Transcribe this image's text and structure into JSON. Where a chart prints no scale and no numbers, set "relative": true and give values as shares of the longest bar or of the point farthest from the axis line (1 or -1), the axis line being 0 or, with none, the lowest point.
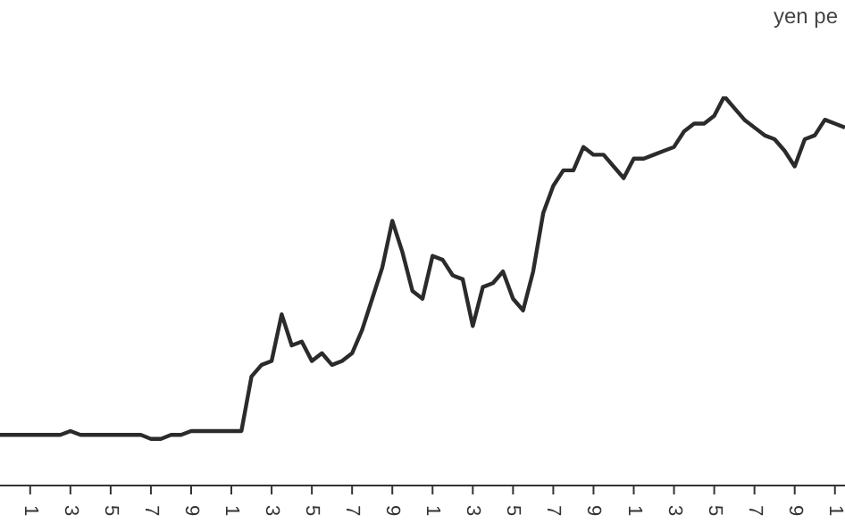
{
  "chart_data": {
    "type": "line",
    "relative": true,
    "ylabel": "yen pe",
    "color": "#2b2b2b",
    "line_style": "solid",
    "marker": "none",
    "grid": false,
    "legend": false,
    "categories": [
      null,
      null,
      null,
      "1",
      null,
      null,
      null,
      "3",
      null,
      null,
      null,
      "5",
      null,
      null,
      null,
      "7",
      null,
      null,
      null,
      "9",
      null,
      null,
      null,
      "1",
      null,
      null,
      null,
      "3",
      null,
      null,
      null,
      "5",
      null,
      null,
      null,
      "7",
      null,
      null,
      null,
      "9",
      null,
      null,
      null,
      "1",
      null,
      null,
      null,
      "3",
      null,
      null,
      null,
      "5",
      null,
      null,
      null,
      "7",
      null,
      null,
      null,
      "9",
      null,
      null,
      null,
      "1",
      null,
      null,
      null,
      "3",
      null,
      null,
      null,
      "5",
      null,
      null,
      null,
      "7",
      null,
      null,
      null,
      "9",
      null,
      null,
      null,
      "1",
      null
    ],
    "values": [
      0.13,
      0.13,
      0.13,
      0.13,
      0.13,
      0.13,
      0.13,
      0.14,
      0.13,
      0.13,
      0.13,
      0.13,
      0.13,
      0.13,
      0.13,
      0.12,
      0.12,
      0.13,
      0.13,
      0.14,
      0.14,
      0.14,
      0.14,
      0.14,
      0.14,
      0.28,
      0.31,
      0.32,
      0.44,
      0.36,
      0.37,
      0.32,
      0.34,
      0.31,
      0.32,
      0.34,
      0.4,
      0.48,
      0.56,
      0.68,
      0.6,
      0.5,
      0.48,
      0.59,
      0.58,
      0.54,
      0.53,
      0.41,
      0.51,
      0.52,
      0.55,
      0.48,
      0.45,
      0.55,
      0.7,
      0.77,
      0.81,
      0.81,
      0.87,
      0.85,
      0.85,
      0.82,
      0.79,
      0.84,
      0.84,
      0.85,
      0.86,
      0.87,
      0.91,
      0.93,
      0.93,
      0.95,
      1.0,
      0.97,
      0.94,
      0.92,
      0.9,
      0.89,
      0.86,
      0.82,
      0.89,
      0.9,
      0.94,
      0.93,
      0.92
    ]
  }
}
